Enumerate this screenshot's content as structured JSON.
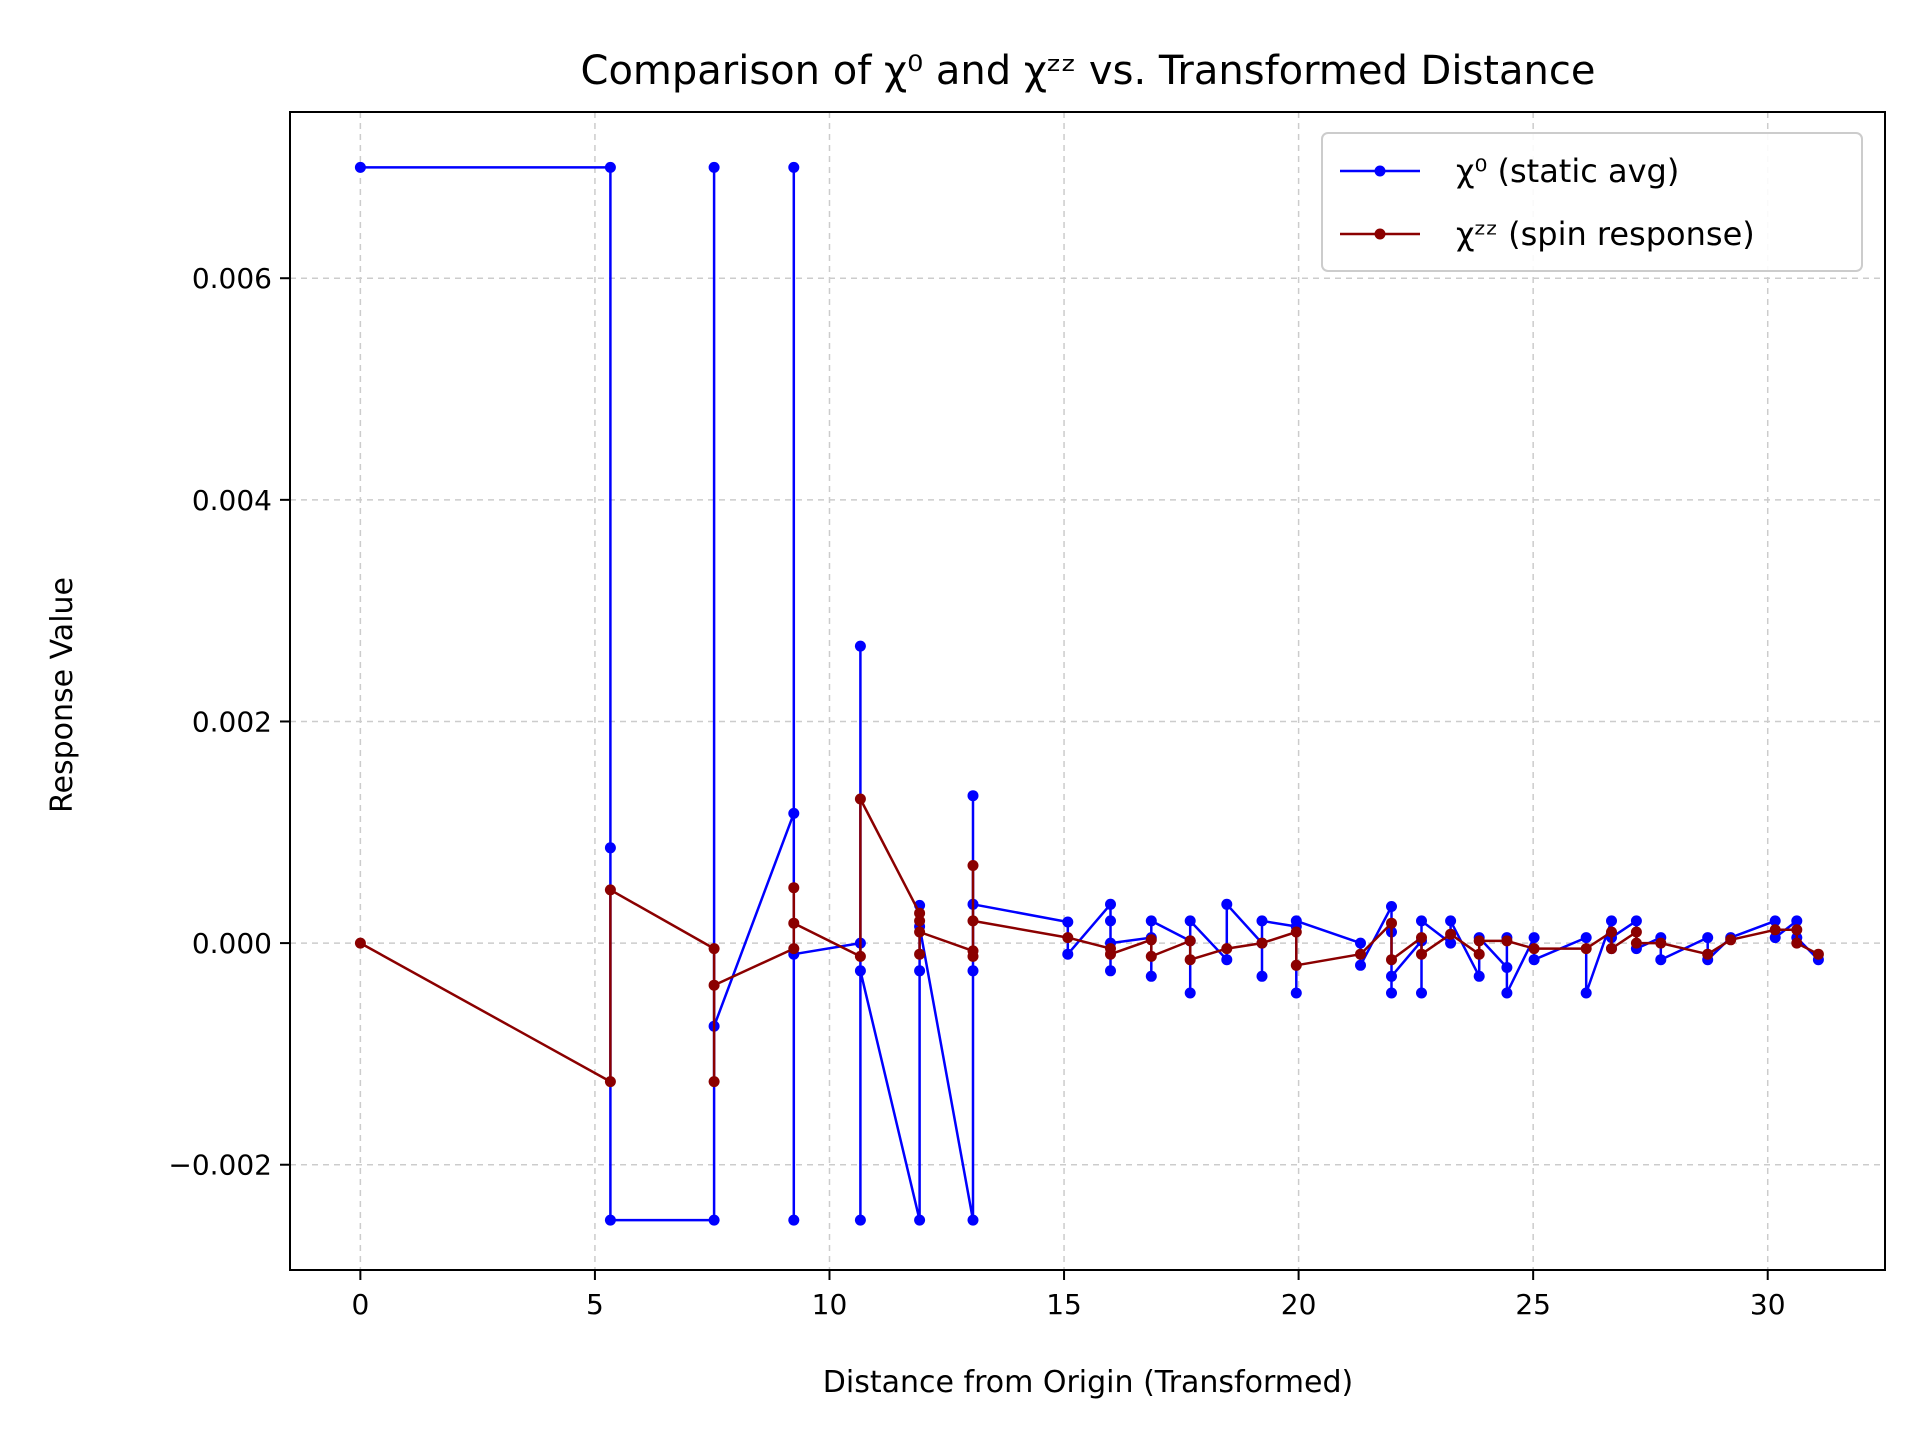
{
  "chart_data": {
    "type": "line",
    "title": "Comparison of χ⁰ and χᶻᶻ vs. Transformed Distance",
    "xlabel": "Distance from Origin (Transformed)",
    "ylabel": "Response Value",
    "xlim": [
      -1.5,
      32.5
    ],
    "ylim": [
      -0.00295,
      0.0075
    ],
    "xticks": [
      0,
      5,
      10,
      15,
      20,
      25,
      30
    ],
    "yticks": [
      -0.002,
      0.0,
      0.002,
      0.004,
      0.006
    ],
    "xtick_labels": [
      "0",
      "5",
      "10",
      "15",
      "20",
      "25",
      "30"
    ],
    "ytick_labels": [
      "−0.002",
      "0.000",
      "0.002",
      "0.004",
      "0.006"
    ],
    "grid": true,
    "legend_position": "top-right",
    "series": [
      {
        "name": "χ⁰ (static avg)",
        "color": "#0000ff",
        "x": [
          0,
          5.33,
          5.33,
          5.33,
          7.54,
          7.54,
          7.54,
          9.24,
          9.24,
          9.24,
          9.24,
          10.66,
          10.66,
          10.66,
          10.66,
          11.92,
          11.92,
          11.92,
          11.92,
          13.06,
          13.06,
          13.06,
          13.06,
          15.08,
          15.08,
          15.99,
          15.99,
          15.99,
          15.99,
          16.86,
          16.86,
          16.86,
          17.69,
          17.69,
          17.69,
          18.47,
          18.47,
          19.22,
          19.22,
          19.22,
          19.95,
          19.95,
          19.95,
          21.32,
          21.32,
          21.98,
          21.98,
          21.98,
          21.98,
          22.62,
          22.62,
          22.62,
          23.24,
          23.24,
          23.85,
          23.85,
          24.44,
          24.44,
          24.44,
          25.02,
          25.02,
          26.13,
          26.13,
          26.67,
          26.67,
          26.67,
          27.2,
          27.2,
          27.72,
          27.72,
          28.72,
          28.72,
          29.21,
          30.16,
          30.16,
          30.62,
          30.62,
          31.08
        ],
        "y": [
          0.007,
          0.007,
          0.00086,
          -0.0025,
          -0.0025,
          0.007,
          -0.00075,
          0.00117,
          -0.0025,
          0.007,
          -0.0001,
          0.0,
          -0.0025,
          0.00268,
          -0.00025,
          -0.0025,
          0.00034,
          -0.00025,
          0.00015,
          -0.0025,
          0.00133,
          -0.00025,
          0.00035,
          0.00019,
          -0.0001,
          0.00035,
          -0.00025,
          0.0002,
          0.0,
          5e-05,
          -0.0003,
          0.0002,
          2e-05,
          -0.00045,
          0.0002,
          -0.00015,
          0.00035,
          0.0,
          -0.0003,
          0.0002,
          0.00015,
          -0.00045,
          0.0002,
          0.0,
          -0.0002,
          0.00033,
          -0.00045,
          0.0001,
          -0.0003,
          2e-05,
          -0.00045,
          0.0002,
          0.0,
          0.0002,
          -0.0003,
          5e-05,
          -0.00022,
          5e-05,
          -0.00045,
          5e-05,
          -0.00015,
          5e-05,
          -0.00045,
          0.0002,
          -5e-05,
          5e-05,
          0.0002,
          -5e-05,
          5e-05,
          -0.00015,
          5e-05,
          -0.00015,
          5e-05,
          0.0002,
          5e-05,
          0.0002,
          5e-05,
          -0.00015
        ]
      },
      {
        "name": "χᶻᶻ (spin response)",
        "color": "#8b0000",
        "x": [
          0,
          5.33,
          5.33,
          7.54,
          7.54,
          7.54,
          9.24,
          9.24,
          9.24,
          10.66,
          10.66,
          11.92,
          11.92,
          11.92,
          11.92,
          13.06,
          13.06,
          13.06,
          13.06,
          15.08,
          15.99,
          15.99,
          16.86,
          16.86,
          17.69,
          17.69,
          18.47,
          19.22,
          19.95,
          19.95,
          21.32,
          21.98,
          21.98,
          22.62,
          22.62,
          23.24,
          23.85,
          23.85,
          24.44,
          25.02,
          26.13,
          26.67,
          26.67,
          27.2,
          27.2,
          27.72,
          28.72,
          29.21,
          30.16,
          30.62,
          30.62,
          31.08
        ],
        "y": [
          0.0,
          -0.00125,
          0.00048,
          -5e-05,
          -0.00125,
          -0.00038,
          -5e-05,
          0.0005,
          0.00018,
          -0.00012,
          0.0013,
          0.00027,
          -0.0001,
          0.0002,
          0.0001,
          -7e-05,
          0.0007,
          -0.00012,
          0.0002,
          5e-05,
          -5e-05,
          -0.0001,
          3e-05,
          -0.00012,
          2e-05,
          -0.00015,
          -5e-05,
          0.0,
          0.0001,
          -0.0002,
          -0.0001,
          0.00018,
          -0.00015,
          5e-05,
          -0.0001,
          8e-05,
          -0.0001,
          2e-05,
          2e-05,
          -5e-05,
          -5e-05,
          0.0001,
          -5e-05,
          0.0001,
          0.0,
          0.0,
          -0.0001,
          3e-05,
          0.00012,
          0.00012,
          0.0,
          -0.0001
        ]
      }
    ]
  }
}
